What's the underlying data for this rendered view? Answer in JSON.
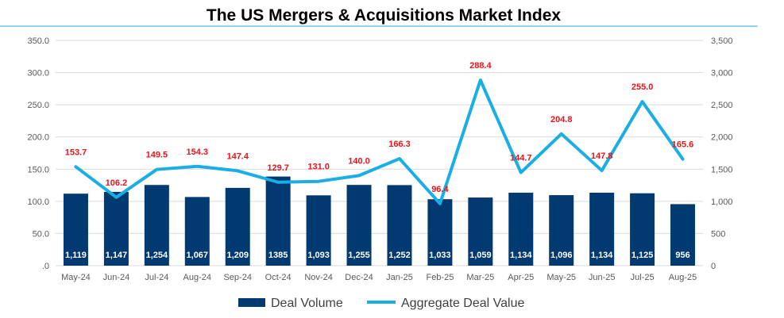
{
  "chart_data": {
    "type": "bar",
    "title": "The US Mergers & Acquisitions Market Index",
    "categories": [
      "May-24",
      "Jun-24",
      "Jul-24",
      "Aug-24",
      "Sep-24",
      "Oct-24",
      "Nov-24",
      "Dec-24",
      "Jan-25",
      "Feb-25",
      "Mar-25",
      "Apr-25",
      "May-25",
      "Jun-25",
      "Jul-25",
      "Aug-25"
    ],
    "series": [
      {
        "name": "Deal Volume",
        "type": "bar",
        "axis": "right",
        "values": [
          1119,
          1147,
          1254,
          1067,
          1209,
          1385,
          1093,
          1255,
          1252,
          1033,
          1059,
          1134,
          1096,
          1134,
          1125,
          956
        ],
        "labels": [
          "1,119",
          "1,147",
          "1,254",
          "1,067",
          "1,209",
          "1385",
          "1,093",
          "1,255",
          "1,252",
          "1,033",
          "1,059",
          "1,134",
          "1,096",
          "1,134",
          "1,125",
          "956"
        ]
      },
      {
        "name": "Aggregate Deal Value",
        "type": "line",
        "axis": "left",
        "values": [
          153.7,
          106.2,
          149.5,
          154.3,
          147.4,
          129.7,
          131.0,
          140.0,
          166.3,
          96.4,
          288.4,
          144.7,
          204.8,
          147.8,
          255.0,
          165.6
        ],
        "labels": [
          "153.7",
          "106.2",
          "149.5",
          "154.3",
          "147.4",
          "129.7",
          "131.0",
          "140.0",
          "166.3",
          "96.4",
          "288.4",
          "144.7",
          "204.8",
          "147.8",
          "255.0",
          "165.6"
        ]
      }
    ],
    "y_left": {
      "ylim": [
        0,
        350
      ],
      "ticks": [
        ".0",
        "50.0",
        "100.0",
        "150.0",
        "200.0",
        "250.0",
        "300.0",
        "350.0"
      ]
    },
    "y_right": {
      "ylim": [
        0,
        3500
      ],
      "ticks": [
        "0",
        "500",
        "1,000",
        "1,500",
        "2,000",
        "2,500",
        "3,000",
        "3,500"
      ]
    },
    "grid": true,
    "legend_position": "bottom",
    "colors": {
      "bar": "#003a70",
      "line": "#1aaee5",
      "line_label": "#e8151b",
      "title_rule": "#1aaee5",
      "grid": "#d9d9d9"
    }
  }
}
